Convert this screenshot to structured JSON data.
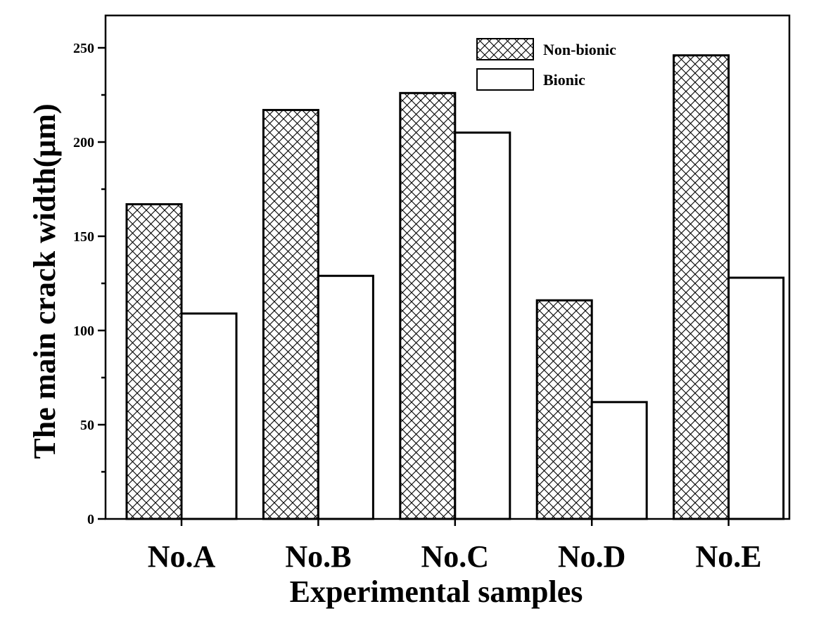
{
  "chart_data": {
    "type": "bar",
    "categories": [
      "No.A",
      "No.B",
      "No.C",
      "No.D",
      "No.E"
    ],
    "series": [
      {
        "name": "Non-bionic",
        "values": [
          167,
          217,
          226,
          116,
          246
        ],
        "pattern": "crosshatch"
      },
      {
        "name": "Bionic",
        "values": [
          109,
          129,
          205,
          62,
          128
        ],
        "pattern": "none"
      }
    ],
    "xlabel": "Experimental samples",
    "ylabel": "The main crack width(μm)",
    "ylim": [
      0,
      250
    ],
    "yticks": [
      "0",
      "50",
      "100",
      "150",
      "200",
      "250"
    ],
    "legend": "top-right",
    "grid": false,
    "colors": {
      "stroke": "#000000",
      "fill": "#ffffff"
    }
  }
}
